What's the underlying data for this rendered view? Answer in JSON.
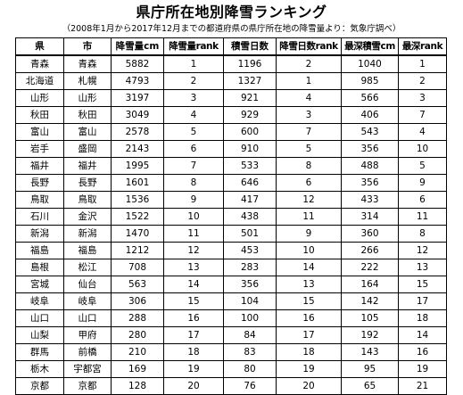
{
  "title": "県庁所在地別降雪ランキング",
  "subtitle": "（2008年1月から2017年12月までの都道府県の県庁所在地の降雪量より：気象庁調べ）",
  "columns": [
    "県",
    "市",
    "降雪量cm",
    "降雪量rank",
    "積雪日数",
    "降雪日数rank",
    "最深積雪cm",
    "最深rank"
  ],
  "rows": [
    [
      "青森",
      "青森",
      "5882",
      "1",
      "1196",
      "2",
      "1040",
      "1"
    ],
    [
      "北海道",
      "札幌",
      "4793",
      "2",
      "1327",
      "1",
      "985",
      "2"
    ],
    [
      "山形",
      "山形",
      "3197",
      "3",
      "921",
      "4",
      "566",
      "3"
    ],
    [
      "秋田",
      "秋田",
      "3049",
      "4",
      "929",
      "3",
      "406",
      "7"
    ],
    [
      "富山",
      "富山",
      "2578",
      "5",
      "600",
      "7",
      "543",
      "4"
    ],
    [
      "岩手",
      "盛岡",
      "2143",
      "6",
      "910",
      "5",
      "356",
      "10"
    ],
    [
      "福井",
      "福井",
      "1995",
      "7",
      "533",
      "8",
      "488",
      "5"
    ],
    [
      "長野",
      "長野",
      "1601",
      "8",
      "646",
      "6",
      "356",
      "9"
    ],
    [
      "鳥取",
      "鳥取",
      "1536",
      "9",
      "417",
      "12",
      "433",
      "6"
    ],
    [
      "石川",
      "金沢",
      "1522",
      "10",
      "438",
      "11",
      "314",
      "11"
    ],
    [
      "新潟",
      "新潟",
      "1470",
      "11",
      "501",
      "9",
      "360",
      "8"
    ],
    [
      "福島",
      "福島",
      "1212",
      "12",
      "453",
      "10",
      "266",
      "12"
    ],
    [
      "島根",
      "松江",
      "708",
      "13",
      "283",
      "14",
      "222",
      "13"
    ],
    [
      "宮城",
      "仙台",
      "563",
      "14",
      "356",
      "13",
      "164",
      "15"
    ],
    [
      "岐阜",
      "岐阜",
      "306",
      "15",
      "104",
      "15",
      "142",
      "17"
    ],
    [
      "山口",
      "山口",
      "288",
      "16",
      "100",
      "16",
      "105",
      "18"
    ],
    [
      "山梨",
      "甲府",
      "280",
      "17",
      "84",
      "17",
      "192",
      "14"
    ],
    [
      "群馬",
      "前橋",
      "210",
      "18",
      "83",
      "18",
      "143",
      "16"
    ],
    [
      "栃木",
      "宇都宮",
      "169",
      "19",
      "80",
      "19",
      "95",
      "19"
    ],
    [
      "京都",
      "京都",
      "128",
      "20",
      "76",
      "20",
      "65",
      "21"
    ]
  ]
}
